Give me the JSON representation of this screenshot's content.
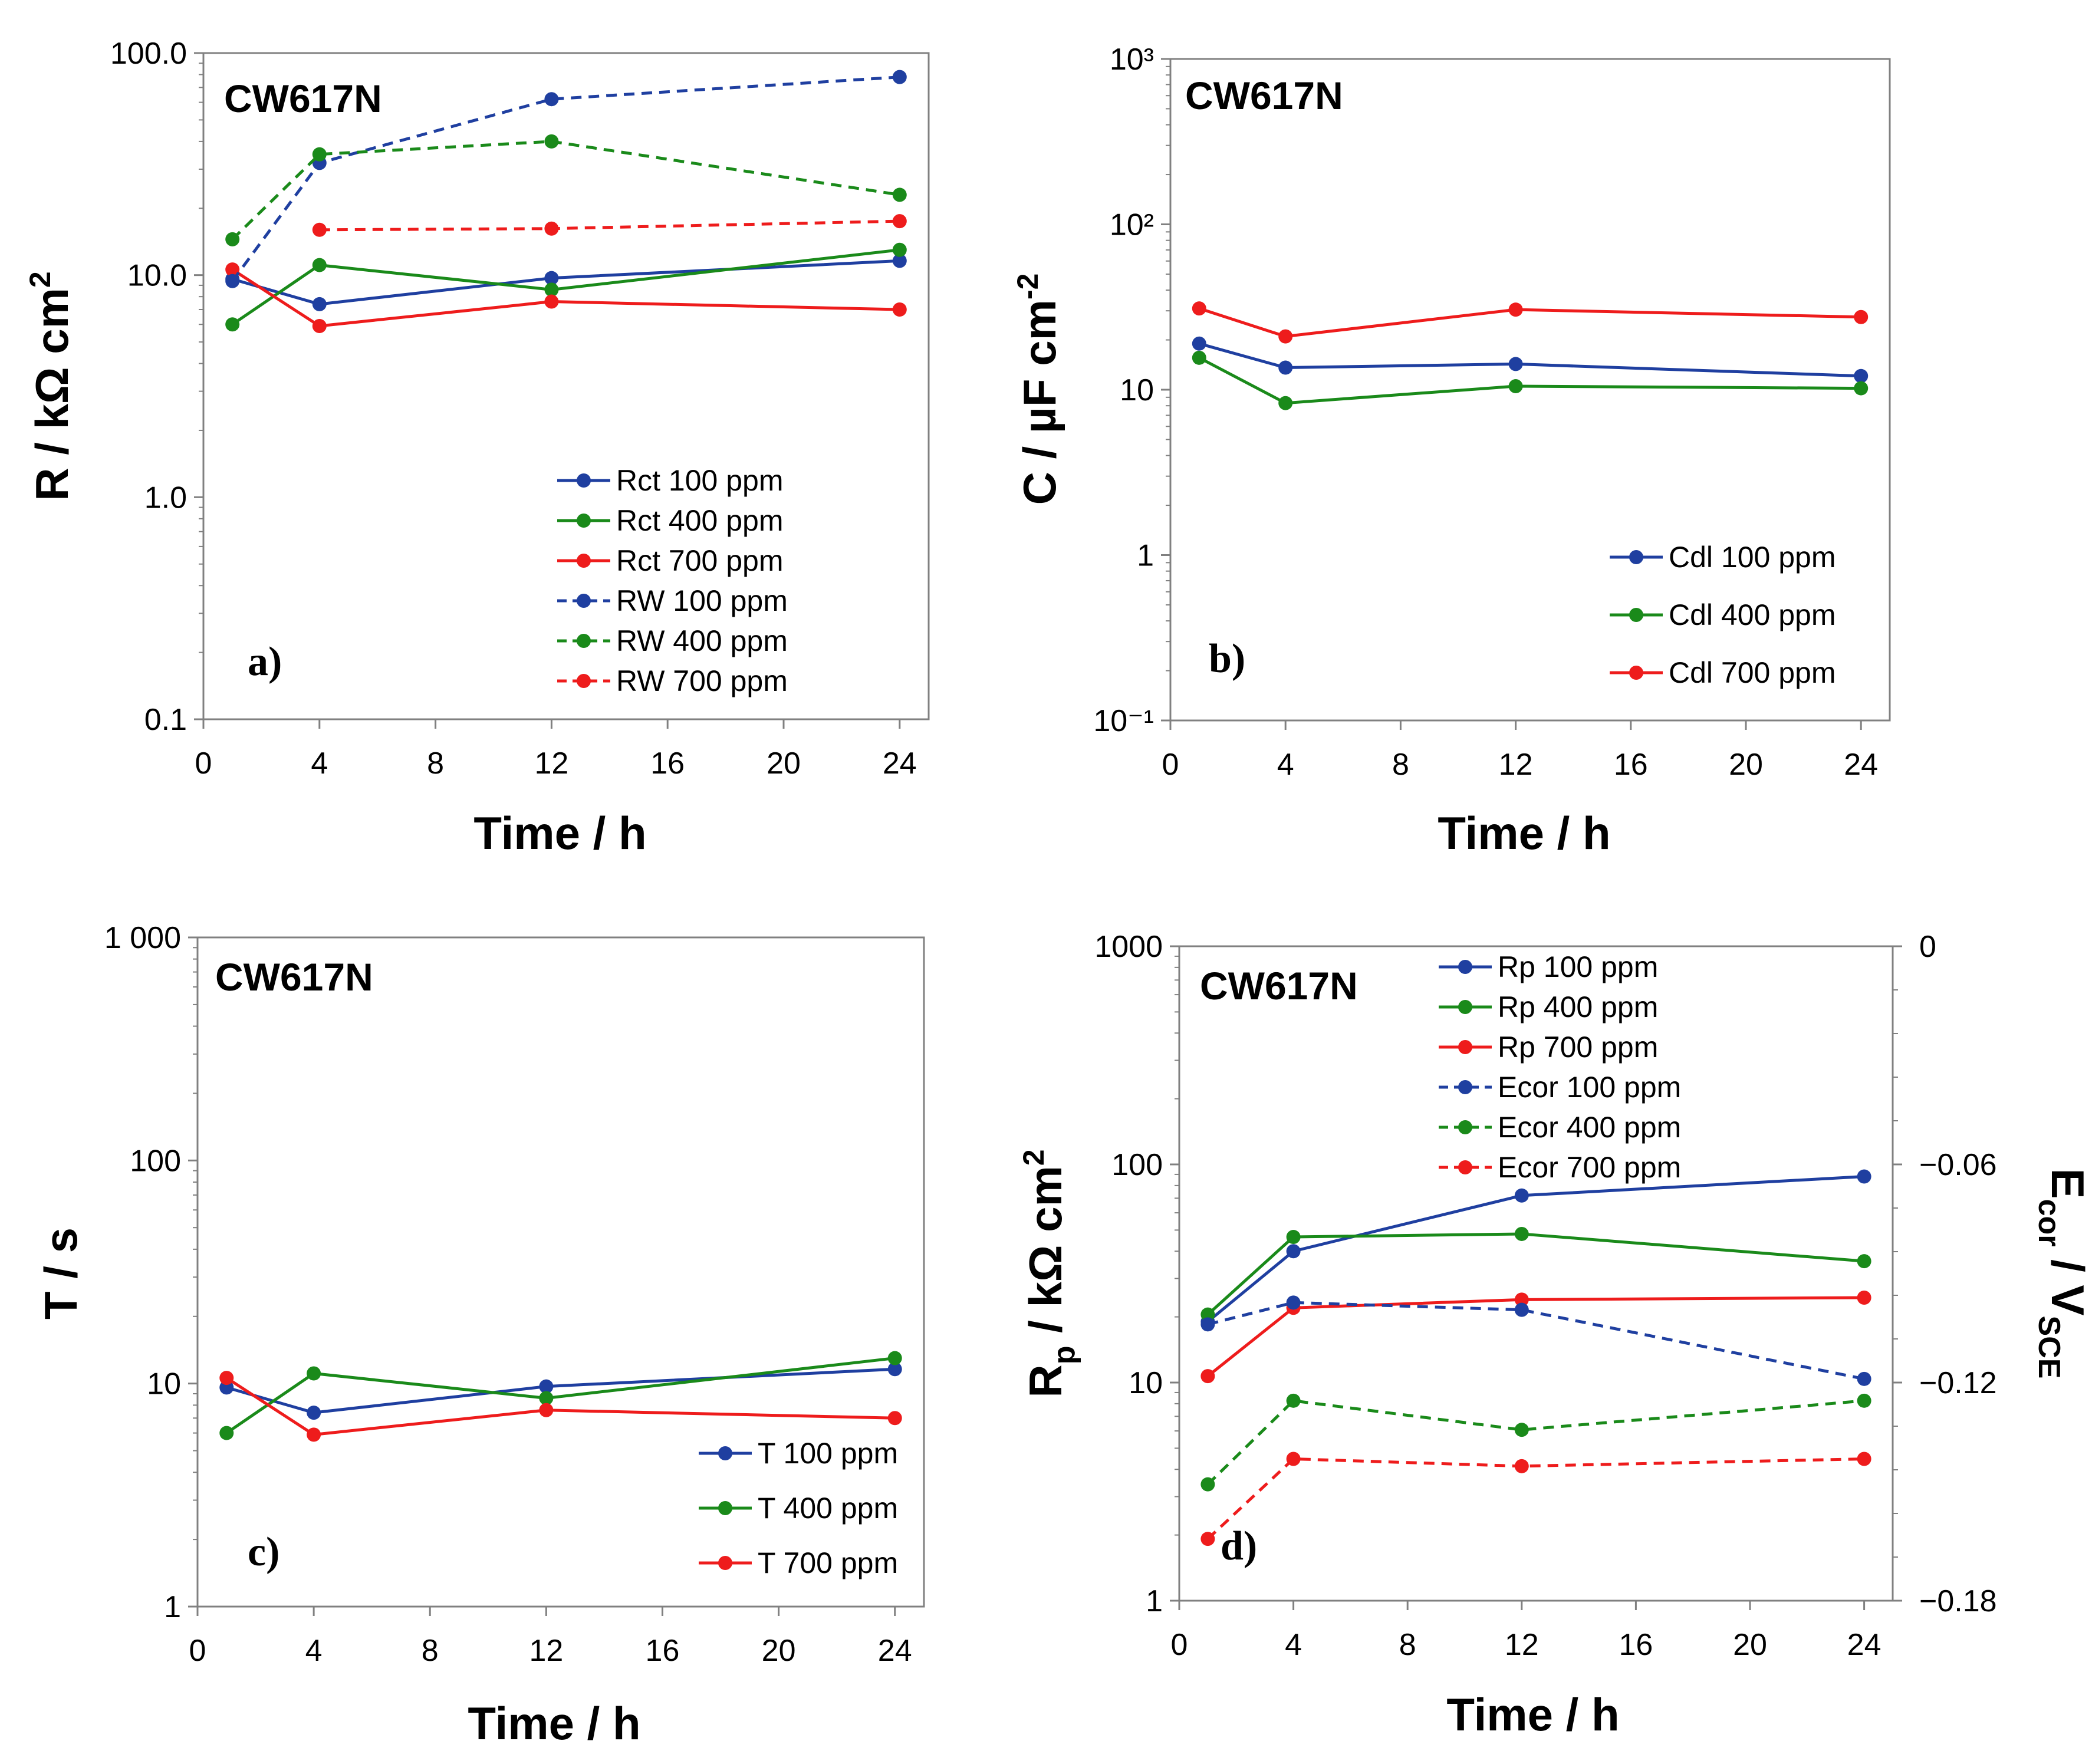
{
  "colors": {
    "blue": "#1f3fa0",
    "green": "#1a8a1a",
    "red": "#ee1c1c"
  },
  "chart_data": [
    {
      "panel": "a)",
      "type": "line",
      "scale": "log",
      "sample": "CW617N",
      "xlabel": "Time / h",
      "ylabel": "R / kΩ cm²",
      "xlim": [
        0,
        25
      ],
      "xticks": [
        0,
        4,
        8,
        12,
        16,
        20,
        24
      ],
      "ylim": [
        0.1,
        100
      ],
      "yticks": [
        0.1,
        1,
        10,
        100
      ],
      "ytick_labels": [
        "0.1",
        "1.0",
        "10.0",
        "100.0"
      ],
      "legend_position": "bottom-right",
      "series": [
        {
          "name": "Rct 100 ppm",
          "color": "blue",
          "dashed": false,
          "x": [
            1,
            4,
            12,
            24
          ],
          "values": [
            9.6,
            7.4,
            9.7,
            11.6
          ]
        },
        {
          "name": "Rct 400 ppm",
          "color": "green",
          "dashed": false,
          "x": [
            1,
            4,
            12,
            24
          ],
          "values": [
            6.0,
            11.1,
            8.6,
            13.0
          ]
        },
        {
          "name": "Rct 700 ppm",
          "color": "red",
          "dashed": false,
          "x": [
            1,
            4,
            12,
            24
          ],
          "values": [
            10.6,
            5.9,
            7.6,
            7.0
          ]
        },
        {
          "name": "RW 100 ppm",
          "color": "blue",
          "dashed": true,
          "x": [
            1,
            4,
            12,
            24
          ],
          "values": [
            9.4,
            32,
            62,
            78
          ]
        },
        {
          "name": "RW 400 ppm",
          "color": "green",
          "dashed": true,
          "x": [
            1,
            4,
            12,
            24
          ],
          "values": [
            14.5,
            35,
            40,
            23
          ]
        },
        {
          "name": "RW 700 ppm",
          "color": "red",
          "dashed": true,
          "x": [
            4,
            12,
            24
          ],
          "values": [
            16.0,
            16.2,
            17.5
          ]
        }
      ]
    },
    {
      "panel": "b)",
      "type": "line",
      "scale": "log",
      "sample": "CW617N",
      "xlabel": "Time / h",
      "ylabel": "C / µF cm⁻²",
      "xlim": [
        0,
        25
      ],
      "xticks": [
        0,
        4,
        8,
        12,
        16,
        20,
        24
      ],
      "ylim": [
        0.1,
        1000
      ],
      "yticks": [
        0.1,
        1,
        10,
        100,
        1000
      ],
      "ytick_labels": [
        "10⁻¹",
        "1",
        "10",
        "10²",
        "10³"
      ],
      "legend_position": "bottom-right",
      "series": [
        {
          "name": "Cdl 100 ppm",
          "color": "blue",
          "dashed": false,
          "x": [
            1,
            4,
            12,
            24
          ],
          "values": [
            19,
            13.6,
            14.3,
            12.1
          ]
        },
        {
          "name": "Cdl 400 ppm",
          "color": "green",
          "dashed": false,
          "x": [
            1,
            4,
            12,
            24
          ],
          "values": [
            15.6,
            8.3,
            10.5,
            10.2
          ]
        },
        {
          "name": "Cdl 700 ppm",
          "color": "red",
          "dashed": false,
          "x": [
            1,
            4,
            12,
            24
          ],
          "values": [
            31,
            21,
            30.5,
            27.5
          ]
        }
      ]
    },
    {
      "panel": "c)",
      "type": "line",
      "scale": "log",
      "sample": "CW617N",
      "xlabel": "Time / h",
      "ylabel": "T / s",
      "xlim": [
        0,
        25
      ],
      "xticks": [
        0,
        4,
        8,
        12,
        16,
        20,
        24
      ],
      "ylim": [
        1,
        1000
      ],
      "yticks": [
        1,
        10,
        100,
        1000
      ],
      "ytick_labels": [
        "1",
        "10",
        "100",
        "1 000"
      ],
      "legend_position": "bottom-right",
      "series": [
        {
          "name": "T 100 ppm",
          "color": "blue",
          "dashed": false,
          "x": [
            1,
            4,
            12,
            24
          ],
          "values": [
            9.6,
            7.4,
            9.7,
            11.6
          ]
        },
        {
          "name": "T 400 ppm",
          "color": "green",
          "dashed": false,
          "x": [
            1,
            4,
            12,
            24
          ],
          "values": [
            6.0,
            11.1,
            8.6,
            13.0
          ]
        },
        {
          "name": "T 700 ppm",
          "color": "red",
          "dashed": false,
          "x": [
            1,
            4,
            12,
            24
          ],
          "values": [
            10.6,
            5.9,
            7.6,
            7.0
          ]
        }
      ]
    },
    {
      "panel": "d)",
      "type": "line",
      "scale": "log",
      "sample": "CW617N",
      "xlabel": "Time / h",
      "ylabel": "Rp / kΩ cm²",
      "y2label": "Ecor / VSCE",
      "xlim": [
        0,
        25
      ],
      "xticks": [
        0,
        4,
        8,
        12,
        16,
        20,
        24
      ],
      "ylim": [
        1,
        1000
      ],
      "yticks": [
        1,
        10,
        100,
        1000
      ],
      "ytick_labels": [
        "1",
        "10",
        "100",
        "1000"
      ],
      "y2lim": [
        -0.18,
        0
      ],
      "y2ticks": [
        -0.18,
        -0.12,
        -0.06,
        0
      ],
      "y2tick_labels": [
        "−0.18",
        "−0.12",
        "−0.06",
        "0"
      ],
      "legend_position": "top-center",
      "series": [
        {
          "name": "Rp 100 ppm",
          "color": "blue",
          "dashed": false,
          "axis": "left",
          "x": [
            1,
            4,
            12,
            24
          ],
          "values": [
            19,
            40,
            72,
            88
          ]
        },
        {
          "name": "Rp 400 ppm",
          "color": "green",
          "dashed": false,
          "axis": "left",
          "x": [
            1,
            4,
            12,
            24
          ],
          "values": [
            20.5,
            46.5,
            48,
            36
          ]
        },
        {
          "name": "Rp 700 ppm",
          "color": "red",
          "dashed": false,
          "axis": "left",
          "x": [
            1,
            4,
            12,
            24
          ],
          "values": [
            10.7,
            22,
            24,
            24.5
          ]
        },
        {
          "name": "Ecor 100 ppm",
          "color": "blue",
          "dashed": true,
          "axis": "right",
          "x": [
            1,
            4,
            12,
            24
          ],
          "values": [
            -0.104,
            -0.098,
            -0.1,
            -0.119
          ]
        },
        {
          "name": "Ecor 400 ppm",
          "color": "green",
          "dashed": true,
          "axis": "right",
          "x": [
            1,
            4,
            12,
            24
          ],
          "values": [
            -0.148,
            -0.125,
            -0.133,
            -0.125
          ]
        },
        {
          "name": "Ecor 700 ppm",
          "color": "red",
          "dashed": true,
          "axis": "right",
          "x": [
            1,
            4,
            12,
            24
          ],
          "values": [
            -0.163,
            -0.141,
            -0.143,
            -0.141
          ]
        }
      ]
    }
  ]
}
